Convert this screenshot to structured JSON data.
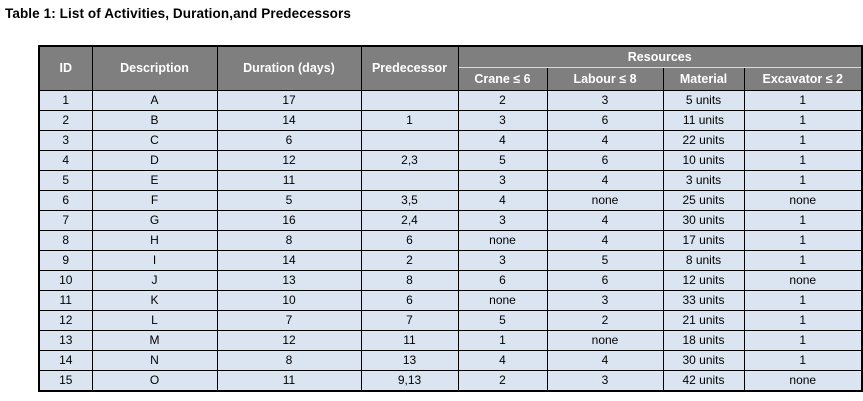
{
  "title": "Table 1: List of Activities, Duration,and Predecessors",
  "colors": {
    "header_bg": "#7f7f7f",
    "header_text": "#ffffff",
    "cell_bg": "#dbe5f1",
    "border": "#000000"
  },
  "table": {
    "headers": {
      "id": "ID",
      "description": "Description",
      "duration": "Duration (days)",
      "predecessor": "Predecessor",
      "resources_group": "Resources",
      "crane": "Crane ≤ 6",
      "labour": "Labour ≤ 8",
      "material": "Material",
      "excavator": "Excavator ≤ 2"
    },
    "rows": [
      [
        "1",
        "A",
        "17",
        "",
        "2",
        "3",
        "5 units",
        "1"
      ],
      [
        "2",
        "B",
        "14",
        "1",
        "3",
        "6",
        "11 units",
        "1"
      ],
      [
        "3",
        "C",
        "6",
        "",
        "4",
        "4",
        "22 units",
        "1"
      ],
      [
        "4",
        "D",
        "12",
        "2,3",
        "5",
        "6",
        "10 units",
        "1"
      ],
      [
        "5",
        "E",
        "11",
        "",
        "3",
        "4",
        "3 units",
        "1"
      ],
      [
        "6",
        "F",
        "5",
        "3,5",
        "4",
        "none",
        "25 units",
        "none"
      ],
      [
        "7",
        "G",
        "16",
        "2,4",
        "3",
        "4",
        "30 units",
        "1"
      ],
      [
        "8",
        "H",
        "8",
        "6",
        "none",
        "4",
        "17 units",
        "1"
      ],
      [
        "9",
        "I",
        "14",
        "2",
        "3",
        "5",
        "8 units",
        "1"
      ],
      [
        "10",
        "J",
        "13",
        "8",
        "6",
        "6",
        "12 units",
        "none"
      ],
      [
        "11",
        "K",
        "10",
        "6",
        "none",
        "3",
        "33 units",
        "1"
      ],
      [
        "12",
        "L",
        "7",
        "7",
        "5",
        "2",
        "21 units",
        "1"
      ],
      [
        "13",
        "M",
        "12",
        "11",
        "1",
        "none",
        "18 units",
        "1"
      ],
      [
        "14",
        "N",
        "8",
        "13",
        "4",
        "4",
        "30 units",
        "1"
      ],
      [
        "15",
        "O",
        "11",
        "9,13",
        "2",
        "3",
        "42 units",
        "none"
      ]
    ]
  }
}
